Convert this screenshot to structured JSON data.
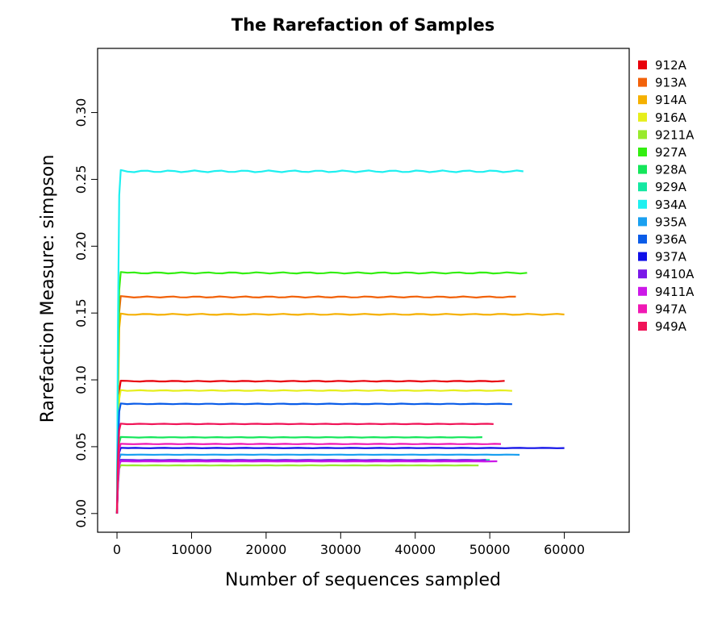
{
  "chart_data": {
    "type": "line",
    "title": "The Rarefaction of Samples",
    "xlabel": "Number of sequences sampled",
    "ylabel": "Rarefaction Measure: simpson",
    "xlim": [
      -2600,
      68700
    ],
    "ylim": [
      -0.014,
      0.348
    ],
    "x_ticks": [
      0,
      10000,
      20000,
      30000,
      40000,
      50000,
      60000
    ],
    "x_tick_labels": [
      "0",
      "10000",
      "20000",
      "30000",
      "40000",
      "50000",
      "60000"
    ],
    "y_ticks": [
      0.0,
      0.05,
      0.1,
      0.15,
      0.2,
      0.25,
      0.3
    ],
    "y_tick_labels": [
      "0.00",
      "0.05",
      "0.10",
      "0.15",
      "0.20",
      "0.25",
      "0.30"
    ],
    "grid": false,
    "legend_position": "right",
    "series": [
      {
        "name": "912A",
        "color": "#e8000b",
        "plateau": 0.099,
        "rise_end": 500,
        "max_x": 52000
      },
      {
        "name": "913A",
        "color": "#f2620a",
        "plateau": 0.162,
        "rise_end": 500,
        "max_x": 53500
      },
      {
        "name": "914A",
        "color": "#f5b000",
        "plateau": 0.149,
        "rise_end": 500,
        "max_x": 60000
      },
      {
        "name": "916A",
        "color": "#e6ee1c",
        "plateau": 0.092,
        "rise_end": 500,
        "max_x": 53000
      },
      {
        "name": "9211A",
        "color": "#98ea2d",
        "plateau": 0.036,
        "rise_end": 500,
        "max_x": 48500
      },
      {
        "name": "927A",
        "color": "#33ee11",
        "plateau": 0.18,
        "rise_end": 500,
        "max_x": 55000
      },
      {
        "name": "928A",
        "color": "#14e65a",
        "plateau": 0.057,
        "rise_end": 500,
        "max_x": 49000
      },
      {
        "name": "929A",
        "color": "#14e8a2",
        "plateau": 0.04,
        "rise_end": 500,
        "max_x": 50000
      },
      {
        "name": "934A",
        "color": "#1ef0f0",
        "plateau": 0.256,
        "rise_end": 500,
        "max_x": 54500
      },
      {
        "name": "935A",
        "color": "#1aa0f0",
        "plateau": 0.044,
        "rise_end": 500,
        "max_x": 54000
      },
      {
        "name": "936A",
        "color": "#0a5ce8",
        "plateau": 0.082,
        "rise_end": 500,
        "max_x": 53000
      },
      {
        "name": "937A",
        "color": "#1010e8",
        "plateau": 0.049,
        "rise_end": 500,
        "max_x": 60000
      },
      {
        "name": "9410A",
        "color": "#7a18e8",
        "plateau": 0.04,
        "rise_end": 500,
        "max_x": 49500
      },
      {
        "name": "9411A",
        "color": "#cc18e8",
        "plateau": 0.039,
        "rise_end": 500,
        "max_x": 51000
      },
      {
        "name": "947A",
        "color": "#f018b4",
        "plateau": 0.052,
        "rise_end": 500,
        "max_x": 51500
      },
      {
        "name": "949A",
        "color": "#f01458",
        "plateau": 0.067,
        "rise_end": 500,
        "max_x": 50500
      }
    ]
  }
}
